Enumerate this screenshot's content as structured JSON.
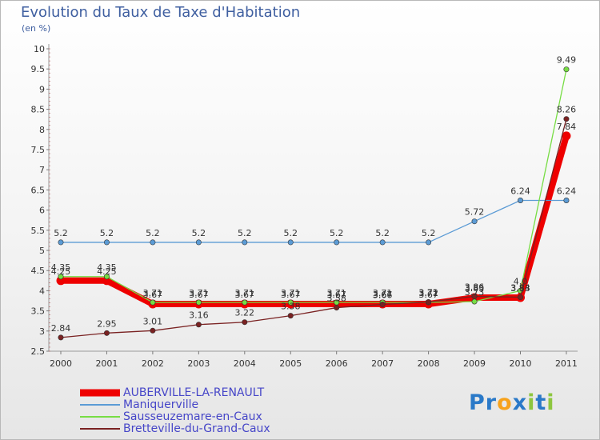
{
  "chart_data": {
    "type": "line",
    "title": "Evolution du Taux de Taxe d'Habitation",
    "subtitle": "(en %)",
    "xlabel": "",
    "ylabel": "",
    "x": [
      "2000",
      "2001",
      "2002",
      "2003",
      "2004",
      "2005",
      "2006",
      "2007",
      "2008",
      "2009",
      "2010",
      "2011"
    ],
    "ylim": [
      2.5,
      10
    ],
    "yticks": [
      "2.5",
      "3",
      "3.5",
      "4",
      "4.5",
      "5",
      "5.5",
      "6",
      "6.5",
      "7",
      "7.5",
      "8",
      "8.5",
      "9",
      "9.5",
      "10"
    ],
    "grid": false,
    "legend_position": "bottom-left",
    "series": [
      {
        "name": "AUBERVILLE-LA-RENAULT",
        "color": "#ee0000",
        "values": [
          4.25,
          4.25,
          3.67,
          3.67,
          3.67,
          3.67,
          3.67,
          3.67,
          3.67,
          3.83,
          3.83,
          7.84
        ],
        "labels": [
          "4.25",
          "4.25",
          "3.67",
          "3.67",
          "3.67",
          "3.67",
          "3.67",
          "3.67",
          "3.67",
          "3.83",
          "3.83",
          "7.84"
        ]
      },
      {
        "name": "Maniquerville",
        "color": "#5b9bd5",
        "values": [
          5.2,
          5.2,
          5.2,
          5.2,
          5.2,
          5.2,
          5.2,
          5.2,
          5.2,
          5.72,
          6.24,
          6.24
        ],
        "labels": [
          "5.2",
          "5.2",
          "5.2",
          "5.2",
          "5.2",
          "5.2",
          "5.2",
          "5.2",
          "5.2",
          "5.72",
          "6.24",
          "6.24"
        ]
      },
      {
        "name": "Sausseuzemare-en-Caux",
        "color": "#77dd44",
        "values": [
          4.35,
          4.35,
          3.71,
          3.71,
          3.71,
          3.71,
          3.71,
          3.71,
          3.71,
          3.73,
          4.0,
          9.49
        ],
        "labels": [
          "4.35",
          "4.35",
          "3.71",
          "3.71",
          "3.71",
          "3.71",
          "3.71",
          "3.71",
          "3.71",
          "3.73",
          "4.0",
          "9.49"
        ]
      },
      {
        "name": "Bretteville-du-Grand-Caux",
        "color": "#7a2222",
        "values": [
          2.84,
          2.95,
          3.01,
          3.16,
          3.22,
          3.38,
          3.58,
          3.66,
          3.72,
          3.86,
          3.84,
          8.26
        ],
        "labels": [
          "2.84",
          "2.95",
          "3.01",
          "3.16",
          "3.22",
          "3.38",
          "3.58",
          "3.66",
          "3.72",
          "3.86",
          "3.84",
          "8.26"
        ]
      }
    ]
  },
  "brand": {
    "letters": [
      {
        "ch": "P",
        "color": "#2a79c8"
      },
      {
        "ch": "r",
        "color": "#2a79c8"
      },
      {
        "ch": "o",
        "color": "#f7a21b"
      },
      {
        "ch": "x",
        "color": "#2a79c8"
      },
      {
        "ch": "i",
        "color": "#8dc63f"
      },
      {
        "ch": "t",
        "color": "#2a79c8"
      },
      {
        "ch": "i",
        "color": "#8dc63f"
      }
    ]
  }
}
